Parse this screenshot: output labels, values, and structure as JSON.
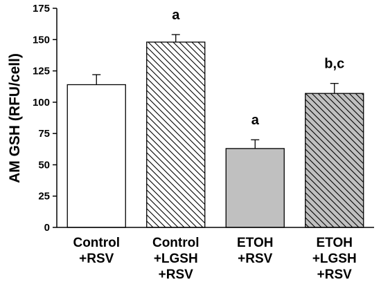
{
  "chart_data": {
    "type": "bar",
    "title": "",
    "xlabel": "",
    "ylabel": "AM GSH (RFU/cell)",
    "ylim": [
      0,
      175
    ],
    "yticks": [
      0,
      25,
      50,
      75,
      100,
      125,
      150,
      175
    ],
    "grid": false,
    "legend": "none",
    "categories": [
      [
        "Control",
        "+RSV"
      ],
      [
        "Control",
        "+LGSH",
        "+RSV"
      ],
      [
        "ETOH",
        "+RSV"
      ],
      [
        "ETOH",
        "+LGSH",
        "+RSV"
      ]
    ],
    "values": [
      114,
      148,
      63,
      107
    ],
    "errors": [
      8,
      6,
      7,
      8
    ],
    "annotations": [
      "",
      "a",
      "a",
      "b,c"
    ],
    "fills": [
      {
        "color": "#ffffff",
        "pattern": "none"
      },
      {
        "color": "#ffffff",
        "pattern": "diagonal-hatch"
      },
      {
        "color": "#c0c0c0",
        "pattern": "none"
      },
      {
        "color": "#c0c0c0",
        "pattern": "diagonal-hatch"
      }
    ]
  }
}
